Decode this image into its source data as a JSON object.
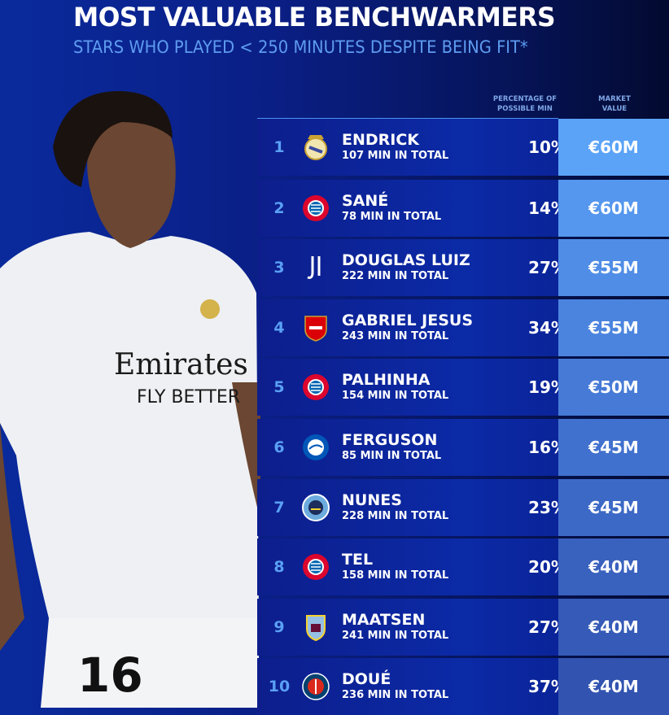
{
  "title": "MOST VALUABLE BENCHWARMERS",
  "subtitle": "STARS WHO PLAYED < 250 MINUTES DESPITE BEING FIT*",
  "headers": {
    "pct": "PERCENTAGE OF POSSIBLE MIN",
    "mv": "MARKET VALUE"
  },
  "photo": {
    "sponsor_line1": "Emirates",
    "sponsor_line2": "FLY BETTER",
    "number": "16"
  },
  "rows": [
    {
      "rank": "1",
      "name": "ENDRICK",
      "mins": "107 MIN IN TOTAL",
      "pct": "10%",
      "value": "€60M",
      "club": "real-madrid",
      "color": "#5aa3f7"
    },
    {
      "rank": "2",
      "name": "SANÉ",
      "mins": "78 MIN IN TOTAL",
      "pct": "14%",
      "value": "€60M",
      "club": "bayern",
      "color": "#5597ee"
    },
    {
      "rank": "3",
      "name": "DOUGLAS LUIZ",
      "mins": "222 MIN IN TOTAL",
      "pct": "27%",
      "value": "€55M",
      "club": "juventus",
      "color": "#508de6"
    },
    {
      "rank": "4",
      "name": "GABRIEL JESUS",
      "mins": "243 MIN IN TOTAL",
      "pct": "34%",
      "value": "€55M",
      "club": "arsenal",
      "color": "#4b84de"
    },
    {
      "rank": "5",
      "name": "PALHINHA",
      "mins": "154 MIN IN TOTAL",
      "pct": "19%",
      "value": "€50M",
      "club": "bayern",
      "color": "#467ad6"
    },
    {
      "rank": "6",
      "name": "FERGUSON",
      "mins": "85 MIN IN TOTAL",
      "pct": "16%",
      "value": "€45M",
      "club": "brighton",
      "color": "#4171ce"
    },
    {
      "rank": "7",
      "name": "NUNES",
      "mins": "228 MIN IN TOTAL",
      "pct": "23%",
      "value": "€45M",
      "club": "man-city",
      "color": "#3d69c6"
    },
    {
      "rank": "8",
      "name": "TEL",
      "mins": "158 MIN IN TOTAL",
      "pct": "20%",
      "value": "€40M",
      "club": "bayern",
      "color": "#3961be"
    },
    {
      "rank": "9",
      "name": "MAATSEN",
      "mins": "241 MIN IN TOTAL",
      "pct": "27%",
      "value": "€40M",
      "club": "aston-villa",
      "color": "#355ab7"
    },
    {
      "rank": "10",
      "name": "DOUÉ",
      "mins": "236 MIN IN TOTAL",
      "pct": "37%",
      "value": "€40M",
      "club": "psg",
      "color": "#3253b0"
    }
  ]
}
